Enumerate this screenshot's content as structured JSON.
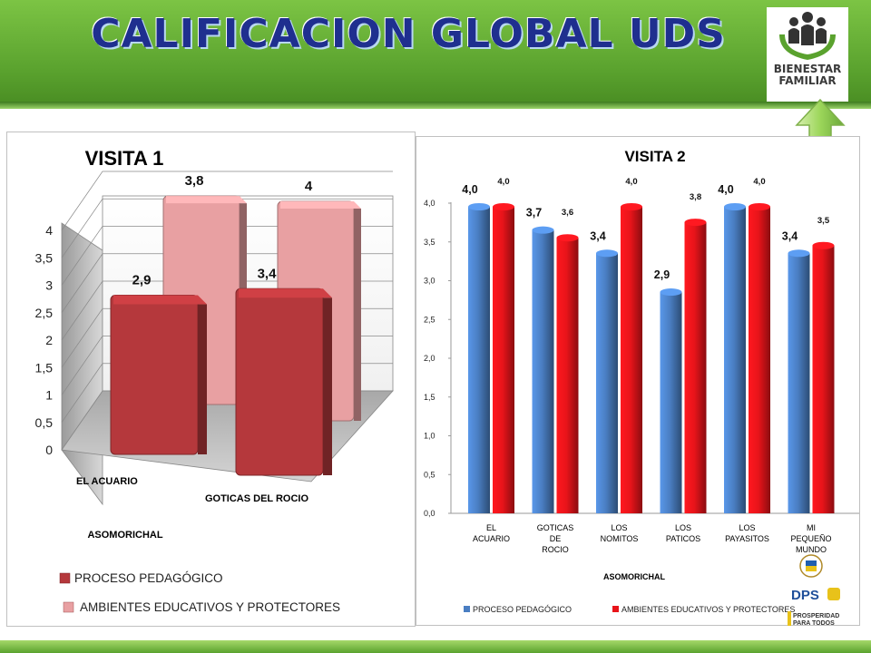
{
  "slide": {
    "title": "CALIFICACION GLOBAL UDS",
    "logo_text": "BIENESTAR\nFAMILIAR",
    "dps_text": "DPS",
    "prosperidad_text": "PROSPERIDAD\nPARA TODOS",
    "colors": {
      "header_green": "#5aa22e",
      "title_blue": "#1f2f8f",
      "arrow_green": "#9cd65a"
    }
  },
  "chart_data": [
    {
      "type": "bar",
      "title": "VISITA 1",
      "categories": [
        "EL ACUARIO",
        "GOTICAS DEL ROCIO"
      ],
      "group_label": "ASOMORICHAL",
      "series": [
        {
          "name": "PROCESO PEDAGÓGICO",
          "values": [
            2.9,
            3.4
          ],
          "labels": [
            "2,9",
            "3,4"
          ],
          "color": "#b5383c"
        },
        {
          "name": "AMBIENTES EDUCATIVOS Y PROTECTORES",
          "values": [
            3.8,
            4
          ],
          "labels": [
            "3,8",
            "4"
          ],
          "color": "#e8a0a2"
        }
      ],
      "ylim": [
        0,
        4
      ],
      "y_ticks": [
        "0",
        "0,5",
        "1",
        "1,5",
        "2",
        "2,5",
        "3",
        "3,5",
        "4"
      ],
      "grid": true,
      "legend_position": "bottom"
    },
    {
      "type": "bar",
      "title": "VISITA 2",
      "categories": [
        "EL ACUARIO",
        "GOTICAS DE ROCIO",
        "LOS NOMITOS",
        "LOS PATICOS",
        "LOS PAYASITOS",
        "MI PEQUEÑO MUNDO"
      ],
      "group_label": "ASOMORICHAL",
      "series": [
        {
          "name": "PROCESO PEDAGÓGICO",
          "values": [
            4.0,
            3.7,
            3.4,
            2.9,
            4.0,
            3.4
          ],
          "labels": [
            "4,0",
            "3,7",
            "3,4",
            "2,9",
            "4,0",
            "3,4"
          ],
          "color": "#4a7ec2"
        },
        {
          "name": "AMBIENTES EDUCATIVOS Y PROTECTORES",
          "values": [
            4.0,
            3.6,
            4.0,
            3.8,
            4.0,
            3.5
          ],
          "labels": [
            "4,0",
            "3,6",
            "4,0",
            "3,8",
            "4,0",
            "3,5"
          ],
          "color": "#e8141a"
        }
      ],
      "ylim": [
        0,
        4
      ],
      "y_ticks": [
        "0,0",
        "0,5",
        "1,0",
        "1,5",
        "2,0",
        "2,5",
        "3,0",
        "3,5",
        "4,0"
      ],
      "grid": false,
      "legend_position": "bottom"
    }
  ]
}
